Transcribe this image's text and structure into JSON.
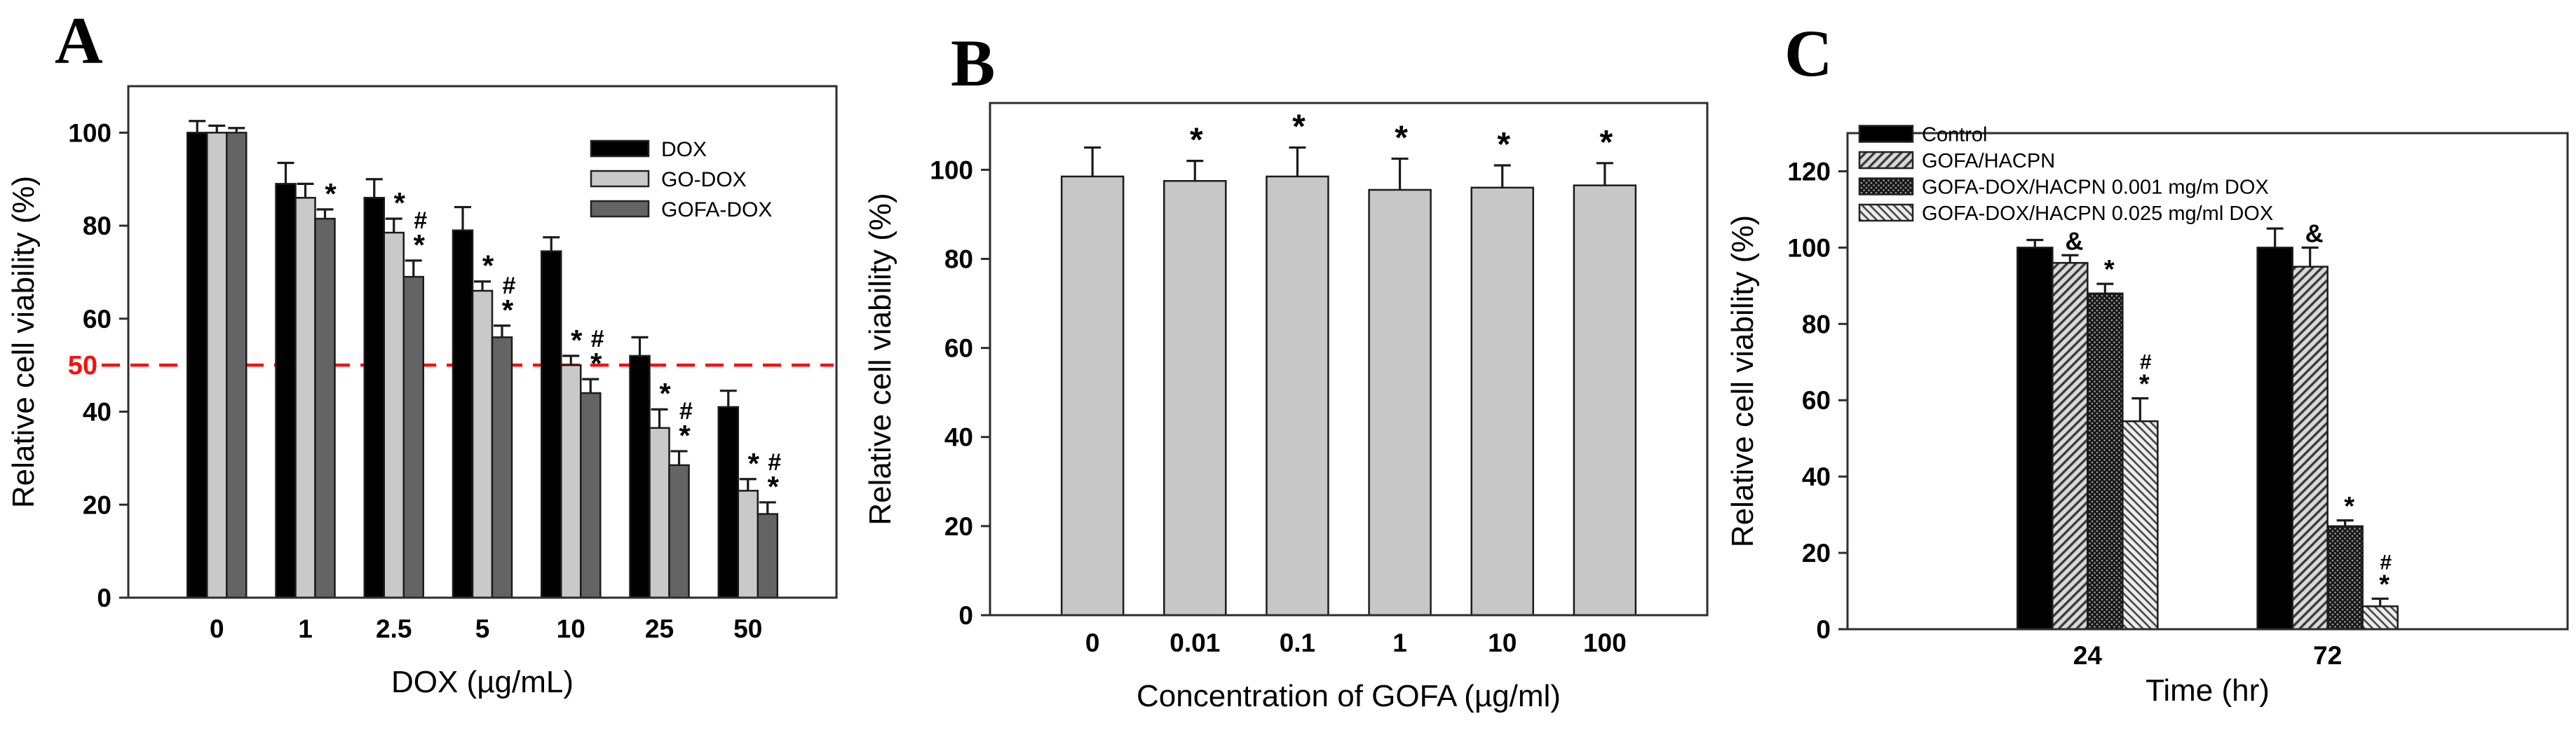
{
  "figure": {
    "background": "#ffffff",
    "panel_letters": [
      "A",
      "B",
      "C"
    ]
  },
  "chart_data": [
    {
      "panel_label": "A",
      "type": "bar",
      "title": "",
      "ylabel": "Relative cell viability (%)",
      "xlabel": "DOX (µg/mL)",
      "categories": [
        "0",
        "1",
        "2.5",
        "5",
        "10",
        "25",
        "50"
      ],
      "ylim": [
        0,
        110
      ],
      "yticks": [
        0,
        20,
        40,
        60,
        80,
        100
      ],
      "grid": false,
      "legend_position": "inside-top-right",
      "ref_line": {
        "y": 50,
        "label": "50",
        "color": "#f80f0f",
        "style": "dashed"
      },
      "series": [
        {
          "name": "DOX",
          "fill": "#000000",
          "values": [
            100,
            89,
            86,
            79,
            74.5,
            52,
            41
          ],
          "errors": [
            2.5,
            4.5,
            4,
            5,
            3,
            4,
            3.5
          ],
          "sig": [
            "",
            "",
            "",
            "",
            "",
            "",
            ""
          ]
        },
        {
          "name": "GO-DOX",
          "fill": "#c9c9c9",
          "values": [
            100,
            86,
            78.5,
            66,
            50,
            36.5,
            23
          ],
          "errors": [
            1.5,
            3,
            3,
            2,
            2,
            4,
            2.5
          ],
          "sig": [
            "",
            "",
            "*",
            "*",
            "*",
            "*",
            "*"
          ]
        },
        {
          "name": "GOFA-DOX",
          "fill": "#646464",
          "values": [
            100,
            81.5,
            69,
            56,
            44,
            28.5,
            18
          ],
          "errors": [
            1,
            2,
            3.5,
            2.5,
            3,
            3,
            2.5
          ],
          "sig": [
            "",
            "*",
            "#*",
            "#*",
            "#*",
            "#*",
            "#*"
          ]
        }
      ]
    },
    {
      "panel_label": "B",
      "type": "bar",
      "title": "",
      "ylabel": "Relative cell viability (%)",
      "xlabel": "Concentration of GOFA (µg/ml)",
      "categories": [
        "0",
        "0.01",
        "0.1",
        "1",
        "10",
        "100"
      ],
      "ylim": [
        0,
        115
      ],
      "yticks": [
        0,
        20,
        40,
        60,
        80,
        100
      ],
      "grid": false,
      "legend_position": "none",
      "series": [
        {
          "name": "GOFA",
          "fill": "#c7c7c7",
          "values": [
            98.5,
            97.5,
            98.5,
            95.5,
            96,
            96.5
          ],
          "errors": [
            6.5,
            4.5,
            6.5,
            7,
            5,
            5
          ],
          "sig": [
            "",
            "*",
            "*",
            "*",
            "*",
            "*"
          ]
        }
      ]
    },
    {
      "panel_label": "C",
      "type": "bar",
      "title": "",
      "ylabel": "Relative cell viability (%)",
      "xlabel": "Time (hr)",
      "categories": [
        "24",
        "72"
      ],
      "ylim": [
        0,
        130
      ],
      "yticks": [
        0,
        20,
        40,
        60,
        80,
        100,
        120
      ],
      "grid": false,
      "legend_position": "inside-top-left",
      "series": [
        {
          "name": "Control",
          "fill": "#000000",
          "values": [
            100,
            100
          ],
          "errors": [
            2,
            5
          ],
          "sig": [
            "",
            ""
          ]
        },
        {
          "name": "GOFA/HACPN",
          "fill": "pattern:hatch-fwd",
          "values": [
            96,
            95
          ],
          "errors": [
            2,
            5
          ],
          "sig": [
            "&",
            "&"
          ]
        },
        {
          "name": "GOFA-DOX/HACPN 0.001 mg/m DOX",
          "fill": "pattern:dot-dark",
          "values": [
            88,
            27
          ],
          "errors": [
            2.5,
            1.5
          ],
          "sig": [
            "*",
            "*"
          ]
        },
        {
          "name": "GOFA-DOX/HACPN 0.025 mg/ml DOX",
          "fill": "pattern:hatch-back",
          "values": [
            54.5,
            6
          ],
          "errors": [
            6,
            2
          ],
          "sig": [
            "#*",
            "#*"
          ]
        }
      ]
    }
  ]
}
